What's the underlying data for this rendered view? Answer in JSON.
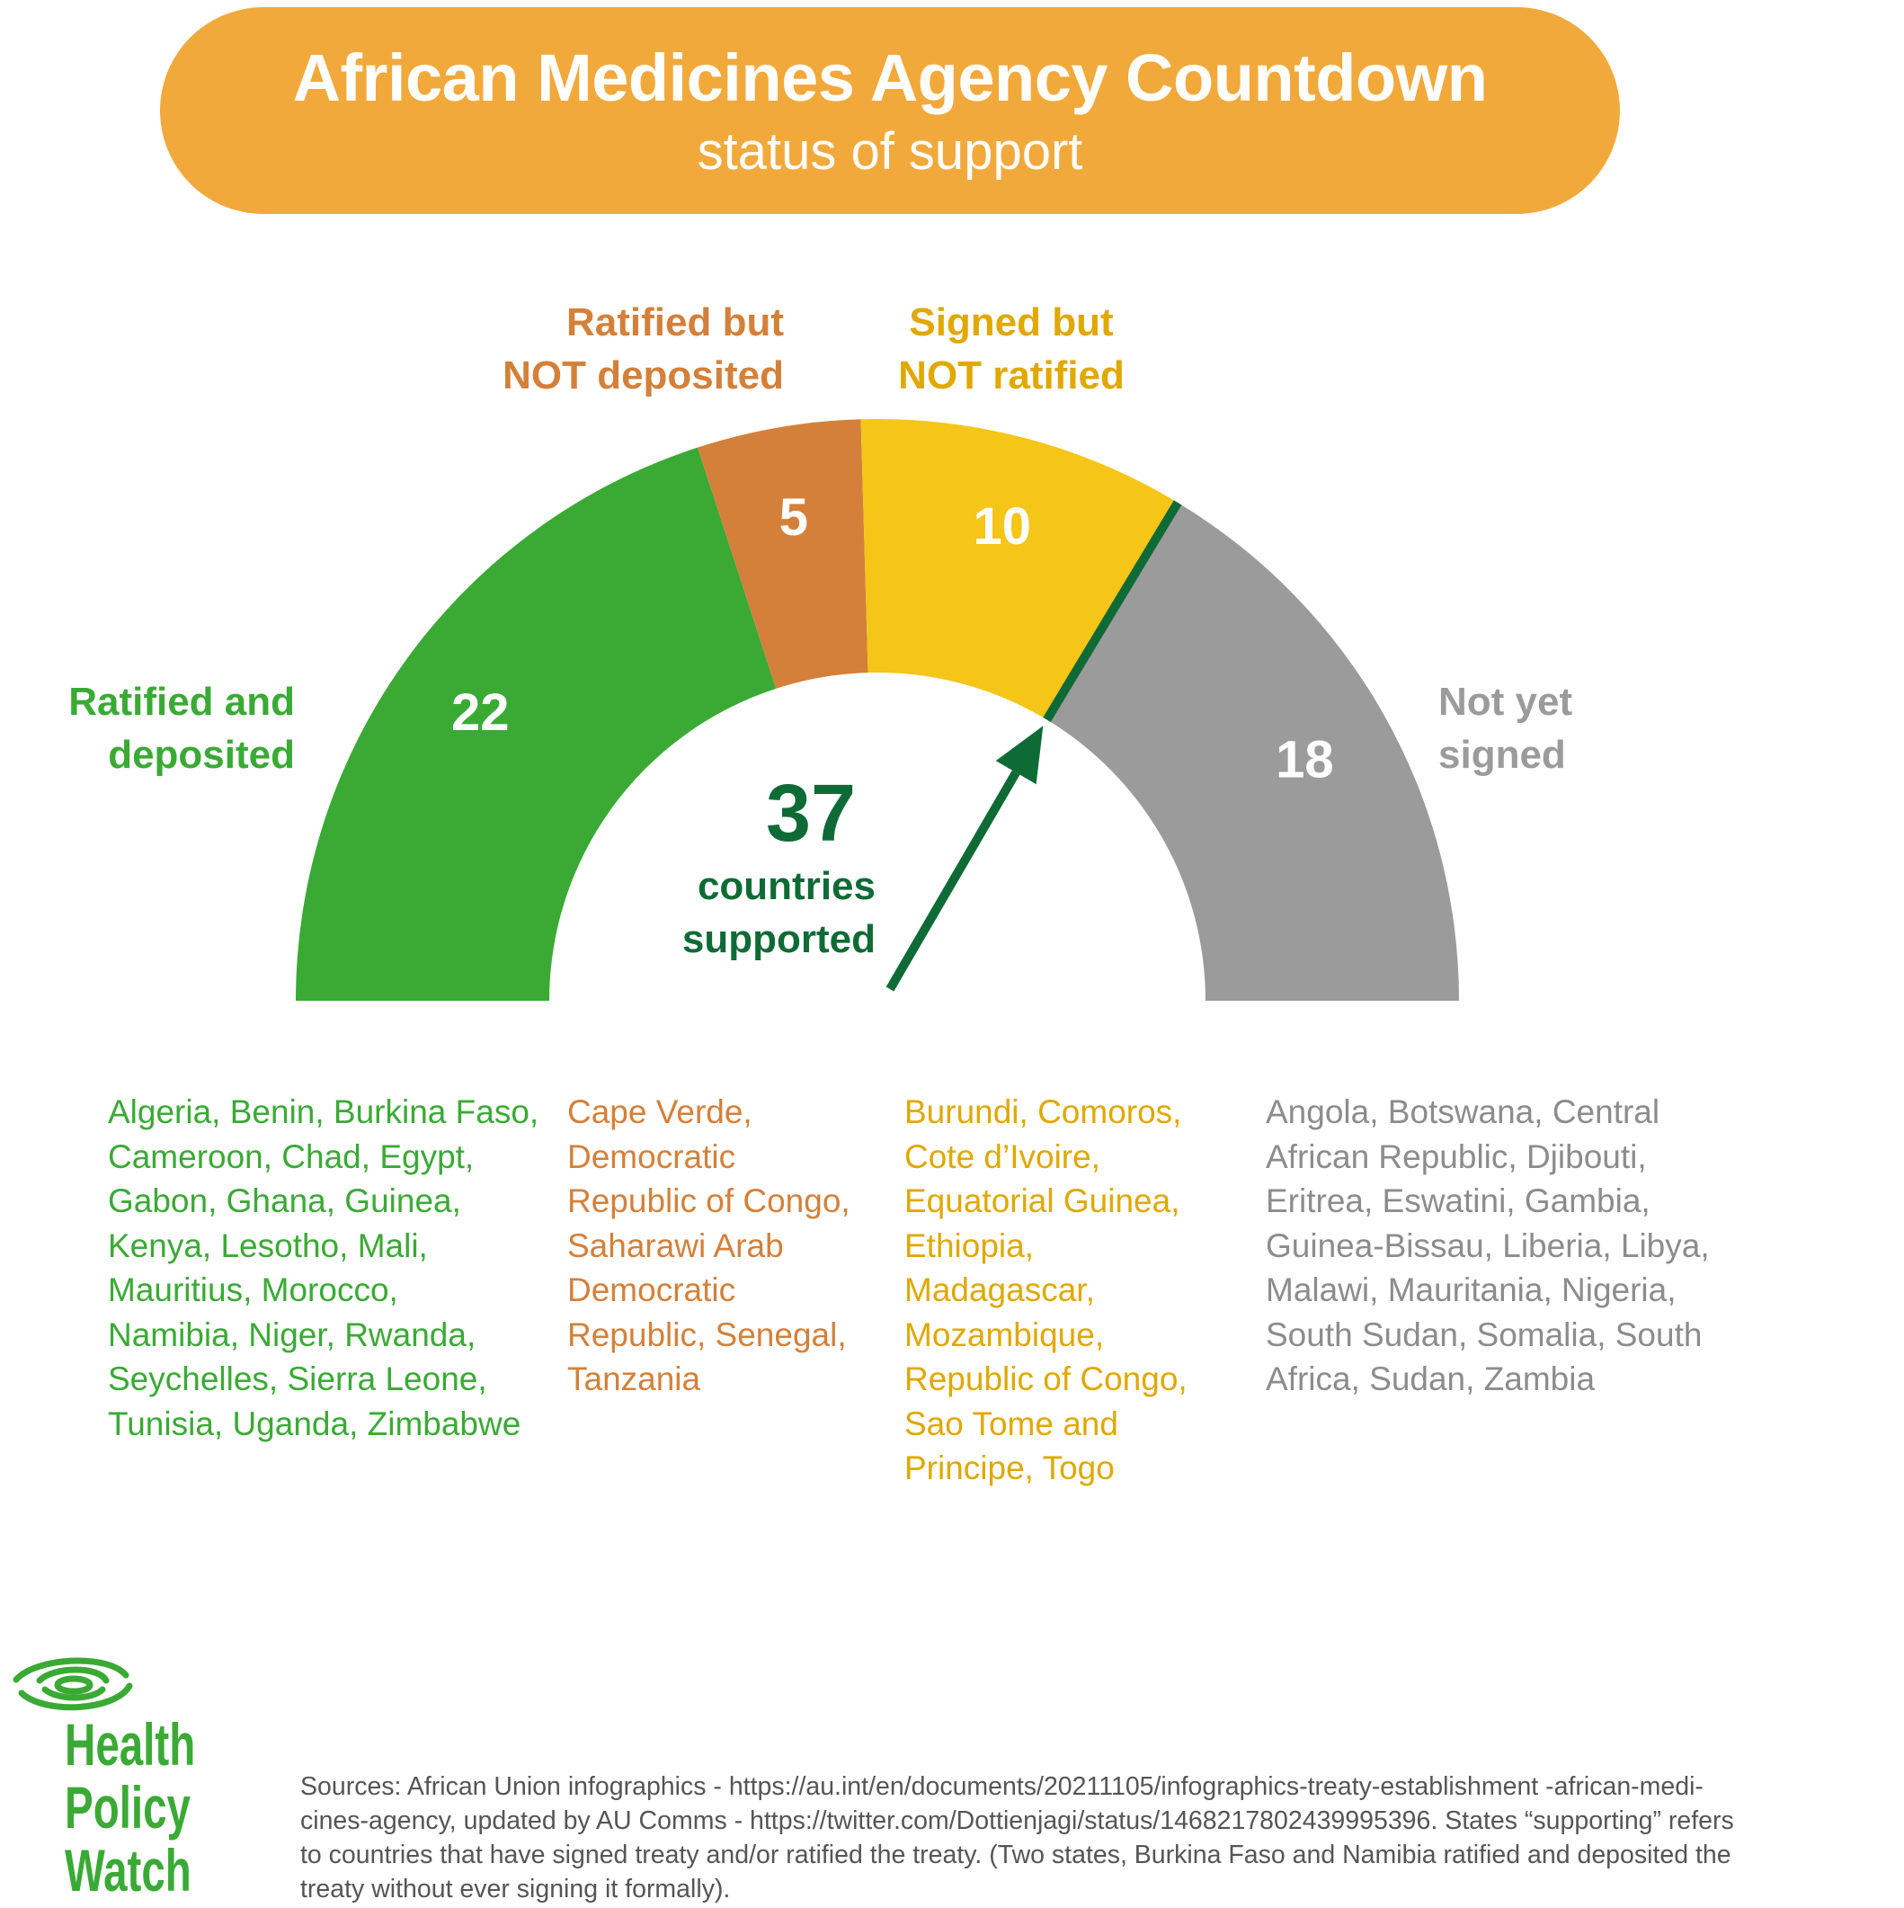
{
  "header": {
    "title": "African Medicines Agency Countdown",
    "subtitle": "status of support"
  },
  "chart_data": {
    "type": "pie",
    "shape": "semicircle gauge",
    "categories": [
      "Ratified and deposited",
      "Ratified but NOT deposited",
      "Signed but NOT ratified",
      "Not yet signed"
    ],
    "values": [
      22,
      5,
      10,
      18
    ],
    "colors": [
      "#3aaa35",
      "#d4803a",
      "#f5c518",
      "#9b9b9b"
    ],
    "label_colors": [
      "#3aaa35",
      "#d4803a",
      "#e0a800",
      "#9b9b9b"
    ],
    "label_lines": [
      [
        "Ratified and",
        "deposited"
      ],
      [
        "Ratified but",
        "NOT deposited"
      ],
      [
        "Signed but",
        "NOT ratified"
      ],
      [
        "Not yet",
        "signed"
      ]
    ],
    "total_supported": {
      "value": "37",
      "lines": [
        "countries",
        "supported"
      ],
      "color": "#0f6b35"
    },
    "pointer_color": "#0f6b35"
  },
  "lists": {
    "ratified_deposited": [
      "Algeria, Benin, Burkina Faso,",
      "Cameroon, Chad, Egypt,",
      "Gabon, Ghana, Guinea,",
      "Kenya, Lesotho, Mali,",
      "Mauritius, Morocco,",
      "Namibia, Niger, Rwanda,",
      "Seychelles, Sierra Leone,",
      "Tunisia, Uganda, Zimbabwe"
    ],
    "ratified_not_deposited": [
      "Cape Verde,",
      "Democratic",
      "Republic of Congo,",
      "Saharawi Arab",
      "Democratic",
      "Republic, Senegal,",
      "Tanzania"
    ],
    "signed_not_ratified": [
      "Burundi, Comoros,",
      "Cote d’Ivoire,",
      "Equatorial Guinea,",
      "Ethiopia,",
      "Madagascar,",
      "Mozambique,",
      "Republic of Congo,",
      "Sao Tome and",
      "Principe, Togo"
    ],
    "not_signed": [
      "Angola, Botswana, Central",
      "African Republic, Djibouti,",
      "Eritrea, Eswatini, Gambia,",
      "Guinea-Bissau, Liberia, Libya,",
      "Malawi, Mauritania, Nigeria,",
      "South Sudan, Somalia, South",
      "Africa, Sudan, Zambia"
    ]
  },
  "logo": {
    "lines": [
      "Health",
      "Policy",
      "Watch"
    ],
    "color": "#3aaa35"
  },
  "sources": {
    "lines": [
      "Sources: African Union infographics - https://au.int/en/documents/20211105/infographics-treaty-establishment -african-medi-",
      "cines-agency, updated by AU Comms - https://twitter.com/Dottienjagi/status/1468217802439995396.  States “supporting” refers",
      "to countries that have signed treaty and/or ratified the treaty.  (Two states, Burkina Faso and Namibia ratified and deposited the",
      "treaty without ever signing it formally)."
    ]
  }
}
